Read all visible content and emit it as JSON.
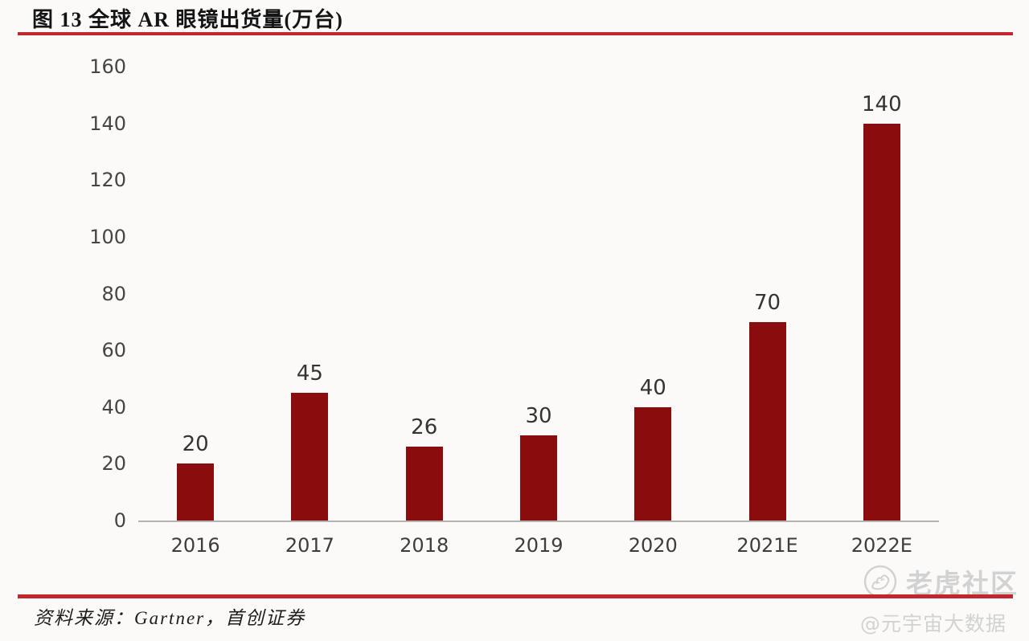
{
  "figure": {
    "title": "图 13 全球 AR 眼镜出货量(万台)",
    "source": "资料来源：Gartner，首创证券"
  },
  "watermark": {
    "community": "老虎社区",
    "handle": "@元宇宙大数据",
    "icon": "tiger-logo-icon"
  },
  "colors": {
    "bar": "#8B0C0C",
    "accent_line": "#C2272D",
    "axis_line": "#B3B3B3",
    "value_label_text": "#343434",
    "watermark_text": "#D2D2D2"
  },
  "chart_data": {
    "type": "bar",
    "categories": [
      "2016",
      "2017",
      "2018",
      "2019",
      "2020",
      "2021E",
      "2022E"
    ],
    "values": [
      20,
      45,
      26,
      30,
      40,
      70,
      140
    ],
    "title": "全球AR眼镜出货量(万台)",
    "xlabel": "",
    "ylabel": "",
    "ylim": [
      0,
      160
    ],
    "y_ticks": [
      0,
      20,
      40,
      60,
      80,
      100,
      120,
      140,
      160
    ],
    "grid": false,
    "legend": "none",
    "data_labels": true
  }
}
